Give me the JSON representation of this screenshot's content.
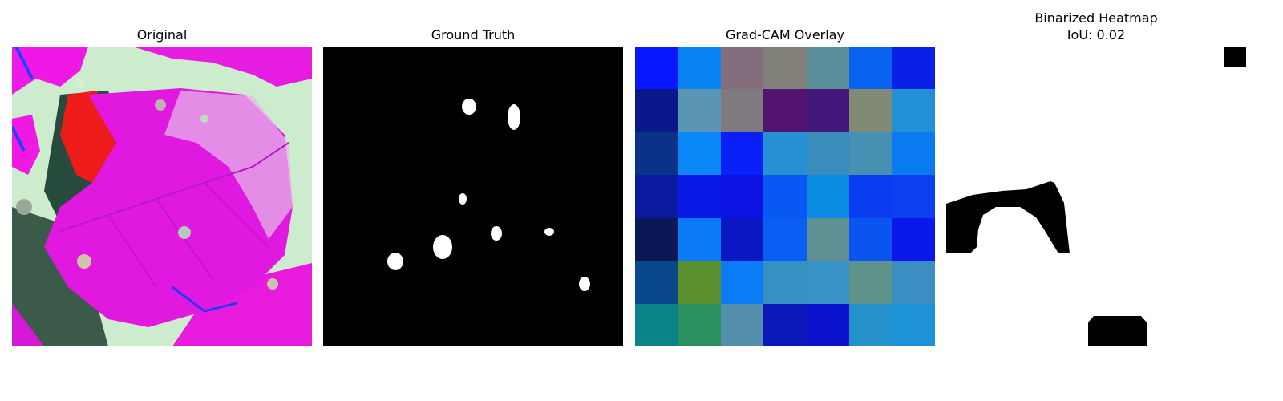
{
  "panels": {
    "original": {
      "title": "Original"
    },
    "ground_truth": {
      "title": "Ground Truth"
    },
    "gradcam": {
      "title": "Grad-CAM Overlay",
      "grid_colors": [
        [
          "#0a18ff",
          "#0882f0",
          "#846e7e",
          "#808078",
          "#5a8e9a",
          "#0a62f0",
          "#0a20e6"
        ],
        [
          "#0a188c",
          "#5a96b4",
          "#7e7a7e",
          "#52146e",
          "#44187a",
          "#808a74",
          "#2290d4"
        ],
        [
          "#0a3288",
          "#0a88f8",
          "#0a20f8",
          "#2690d4",
          "#3a8cbc",
          "#4690b4",
          "#0a7af0"
        ],
        [
          "#0a1aa0",
          "#0a18e6",
          "#0a12e4",
          "#0a58f4",
          "#0a8ce2",
          "#0a3cf0",
          "#0a40f0"
        ],
        [
          "#0a1858",
          "#0a7af6",
          "#0a18c4",
          "#0a5ef6",
          "#5e9094",
          "#0a54f0",
          "#0a18ec"
        ],
        [
          "#0a488c",
          "#5c902e",
          "#0a7cf8",
          "#3690c2",
          "#3892c4",
          "#60928c",
          "#3a8ec2"
        ],
        [
          "#0a8488",
          "#2a9060",
          "#5490ae",
          "#0a18bc",
          "#0a12cc",
          "#2692cc",
          "#1e92d8"
        ]
      ]
    },
    "binarized": {
      "title_line1": "Binarized Heatmap",
      "title_line2": "IoU: 0.02"
    }
  }
}
